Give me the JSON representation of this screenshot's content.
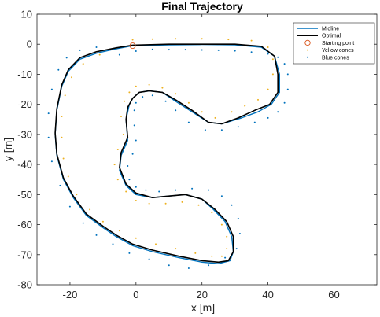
{
  "chart_data": {
    "type": "line",
    "title": "Final Trajectory",
    "xlabel": "x [m]",
    "ylabel": "y [m]",
    "xlim": [
      -30,
      73
    ],
    "ylim": [
      -80,
      10
    ],
    "xticks": [
      -20,
      0,
      20,
      40,
      60
    ],
    "yticks": [
      10,
      0,
      -10,
      -20,
      -30,
      -40,
      -50,
      -60,
      -70,
      -80
    ],
    "grid": false,
    "legend_position": "top-right",
    "colors": {
      "midline": "#0072BD",
      "optimal": "#000000",
      "start": "#D95319",
      "yellow": "#EDB120",
      "blue": "#0072BD"
    },
    "series": [
      {
        "name": "Midline",
        "style": "line",
        "x": [
          -1,
          10,
          20,
          30,
          38,
          42,
          43.5,
          43.5,
          41,
          37,
          32,
          26,
          22,
          17,
          12,
          8,
          4,
          1,
          -1,
          -2,
          -3,
          -2.5,
          -4.5,
          -5,
          -3,
          0,
          5,
          10,
          15,
          20,
          23.5,
          27,
          29,
          29.5,
          28.5,
          25,
          20,
          13,
          5,
          -1,
          -6,
          -10,
          -15,
          -19,
          -22,
          -24,
          -24.5,
          -24,
          -22.5,
          -20.5,
          -17,
          -12,
          -6,
          -1
        ],
        "y": [
          -0.5,
          -0.2,
          -0.1,
          -0.2,
          -1,
          -4,
          -10,
          -16,
          -20,
          -22.5,
          -24.5,
          -26.5,
          -26,
          -22.5,
          -19,
          -16,
          -15.5,
          -16,
          -18,
          -20,
          -25,
          -32,
          -37,
          -42,
          -47,
          -50,
          -51,
          -50.5,
          -50,
          -51.5,
          -55,
          -59,
          -64,
          -69,
          -72,
          -73,
          -72.5,
          -71,
          -69,
          -67,
          -64,
          -61,
          -57,
          -51,
          -45,
          -37,
          -30,
          -22,
          -14,
          -9,
          -5,
          -3,
          -1.5,
          -0.5
        ]
      },
      {
        "name": "Optimal",
        "style": "line",
        "x": [
          -1,
          10,
          20,
          30,
          38,
          42,
          43,
          43,
          40.5,
          36,
          31,
          26,
          22,
          17,
          12,
          8,
          4,
          1,
          -1,
          -2.5,
          -3,
          -2.5,
          -4.5,
          -5,
          -3,
          0,
          5,
          10,
          15,
          20,
          24,
          27.5,
          29.5,
          29.5,
          28,
          25,
          20,
          13,
          5,
          -1,
          -6,
          -10,
          -15,
          -19,
          -22,
          -24,
          -24.5,
          -24,
          -22.5,
          -20.5,
          -17,
          -12,
          -6,
          -1
        ],
        "y": [
          -0.3,
          0,
          0,
          0,
          -0.7,
          -4,
          -10,
          -16,
          -20,
          -22,
          -24.5,
          -26.5,
          -26,
          -22,
          -18.5,
          -16,
          -15.5,
          -16,
          -18,
          -21,
          -25,
          -31,
          -36,
          -41,
          -46.5,
          -49.5,
          -51,
          -50.5,
          -50,
          -51.5,
          -55,
          -59,
          -64,
          -69,
          -72,
          -72.5,
          -72,
          -70.5,
          -68.5,
          -66.5,
          -63.5,
          -60.5,
          -56.5,
          -50.5,
          -44.5,
          -36.5,
          -29.5,
          -21.5,
          -13.5,
          -8.5,
          -4.5,
          -2.5,
          -1.2,
          -0.3
        ]
      },
      {
        "name": "Starting point",
        "style": "marker-circle",
        "x": [
          -1
        ],
        "y": [
          -0.5
        ]
      },
      {
        "name": "Yellow cones",
        "style": "dots",
        "x": [
          -1,
          5,
          12,
          20,
          28,
          35,
          40,
          41.5,
          41.5,
          40,
          37,
          33,
          29,
          24,
          20,
          16,
          12,
          8,
          4,
          0,
          -2,
          -3.5,
          -4.5,
          -3.8,
          -5.5,
          -6.5,
          -5.5,
          -3,
          0,
          4,
          9,
          14,
          19,
          23,
          26,
          27.5,
          27.5,
          26,
          23,
          18,
          12,
          6,
          0,
          -5,
          -10,
          -14,
          -18,
          -20.5,
          -22,
          -22.5,
          -22.5,
          -21.5,
          -19.5,
          -16,
          -11,
          -6
        ],
        "y": [
          1.5,
          1.7,
          1.8,
          1.8,
          1.6,
          1.2,
          -1,
          -5,
          -10,
          -15,
          -18.5,
          -20.5,
          -22.5,
          -24.5,
          -22.5,
          -19.5,
          -16.5,
          -14.5,
          -13.5,
          -14,
          -16,
          -19,
          -24,
          -30,
          -35,
          -40,
          -45,
          -49,
          -52,
          -53,
          -53,
          -52.5,
          -53.5,
          -56,
          -60,
          -64,
          -68,
          -70.5,
          -70.5,
          -69.5,
          -68,
          -66.5,
          -64.5,
          -62,
          -59,
          -55,
          -50,
          -44,
          -38,
          -31,
          -24,
          -17,
          -11,
          -6.5,
          -3.5,
          -1.5
        ]
      },
      {
        "name": "Blue cones",
        "style": "dots",
        "x": [
          -5,
          0,
          5,
          10,
          15,
          20,
          25,
          30,
          35,
          40,
          43,
          45,
          46,
          46,
          45,
          43,
          40,
          36,
          31,
          26,
          21,
          16,
          12,
          9,
          5,
          2,
          0,
          -0.5,
          -0.5,
          0,
          -1,
          -2.5,
          -2,
          0,
          3,
          7,
          12,
          17,
          22,
          26,
          29,
          31,
          31.5,
          30.5,
          27,
          22,
          16,
          10,
          4,
          -2,
          -7,
          -12,
          -16,
          -20,
          -23,
          -25.5,
          -26.5,
          -26.5,
          -25.5,
          -23.5,
          -21,
          -17,
          -12
        ],
        "y": [
          -3.5,
          -2.3,
          -1.7,
          -1.8,
          -1.8,
          -1.9,
          -2,
          -2.2,
          -2.6,
          -3.2,
          -4.3,
          -6.5,
          -10,
          -15,
          -19.5,
          -22.5,
          -24.5,
          -26,
          -27.5,
          -28.5,
          -28.5,
          -26,
          -22,
          -19,
          -17,
          -17.5,
          -19.5,
          -22,
          -27,
          -32,
          -36.5,
          -40.5,
          -45,
          -47.5,
          -48.5,
          -49,
          -48.5,
          -48,
          -48.5,
          -50.5,
          -53.5,
          -58,
          -63,
          -68,
          -71,
          -73.5,
          -74.5,
          -73.5,
          -71.5,
          -69.5,
          -66.5,
          -63.5,
          -59.5,
          -54,
          -47,
          -39,
          -31,
          -23,
          -15,
          -8.5,
          -4.5,
          -2,
          -1
        ]
      }
    ]
  }
}
